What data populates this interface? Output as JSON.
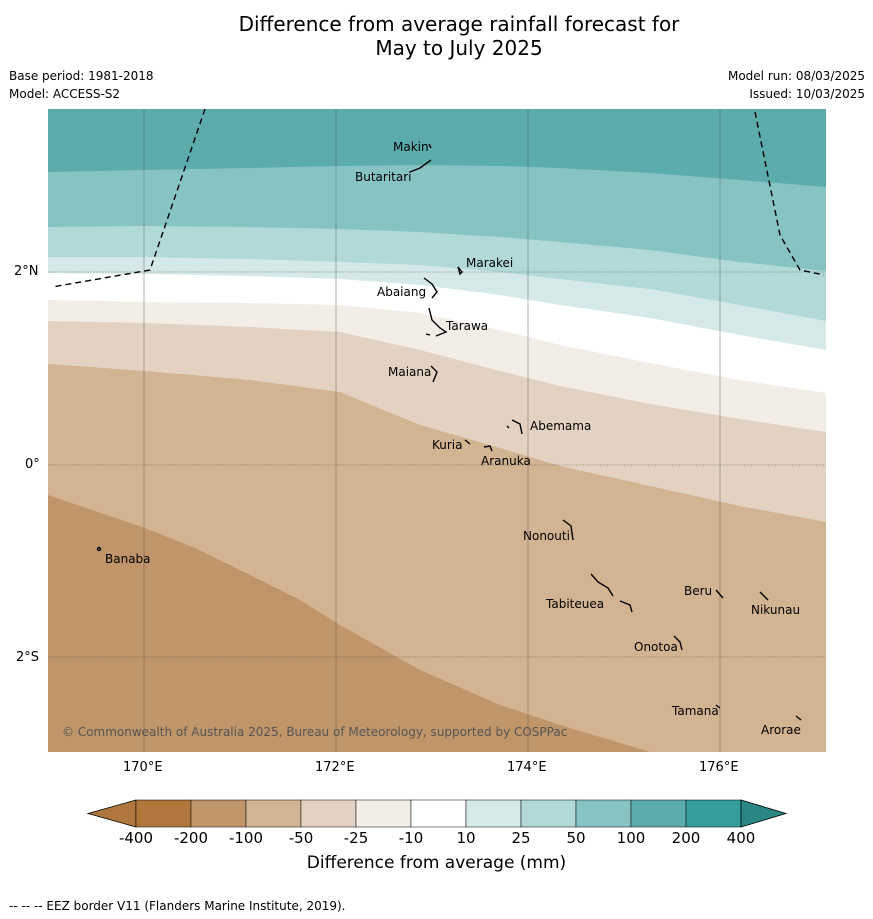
{
  "title_line1": "Difference from average rainfall forecast for",
  "title_line2": "May to July 2025",
  "base_period": "Base period: 1981-2018",
  "model": "Model: ACCESS-S2",
  "model_run": "Model run: 08/03/2025",
  "issued": "Issued: 10/03/2025",
  "lat_ticks": [
    "2°N",
    "0°",
    "2°S"
  ],
  "lon_ticks": [
    "170°E",
    "172°E",
    "174°E",
    "176°E"
  ],
  "islands": [
    "Makin",
    "Butaritari",
    "Marakei",
    "Abaiang",
    "Tarawa",
    "Maiana",
    "Abemama",
    "Kuria",
    "Aranuka",
    "Nonouti",
    "Banaba",
    "Beru",
    "Nikunau",
    "Tabiteuea",
    "Onotoa",
    "Tamana",
    "Arorae"
  ],
  "copyright": "© Commonwealth of Australia 2025, Bureau of Meteorology, supported by COSPPac",
  "colorbar": {
    "labels": [
      "-400",
      "-200",
      "-100",
      "-50",
      "-25",
      "-10",
      "10",
      "25",
      "50",
      "100",
      "200",
      "400"
    ],
    "colors": [
      "#b0773d",
      "#c0956a",
      "#d2b392",
      "#e3d2c1",
      "#f2ede7",
      "#ffffff",
      "#d5e9e8",
      "#b0d9d8",
      "#87c3c2",
      "#5cacac",
      "#349e9c",
      "#2a8784"
    ],
    "title": "Difference from average (mm)"
  },
  "footer": "--  --  -- EEZ border V11 (Flanders Marine Institute, 2019).",
  "chart_data": {
    "type": "heatmap",
    "title": "Difference from average rainfall forecast for May to July 2025",
    "legend_title": "Difference from average (mm)",
    "color_bins": [
      -400,
      -200,
      -100,
      -50,
      -25,
      -10,
      10,
      25,
      50,
      100,
      200,
      400
    ],
    "lon_range_deg_e": [
      169,
      177
    ],
    "lat_range_deg": [
      -3,
      3.7
    ],
    "region_summary": {
      "north": "wetter than average (+100 to +200 mm)",
      "central": "near average (-10 to +10 mm)",
      "south": "drier than average (-100 to -200 mm)"
    }
  }
}
